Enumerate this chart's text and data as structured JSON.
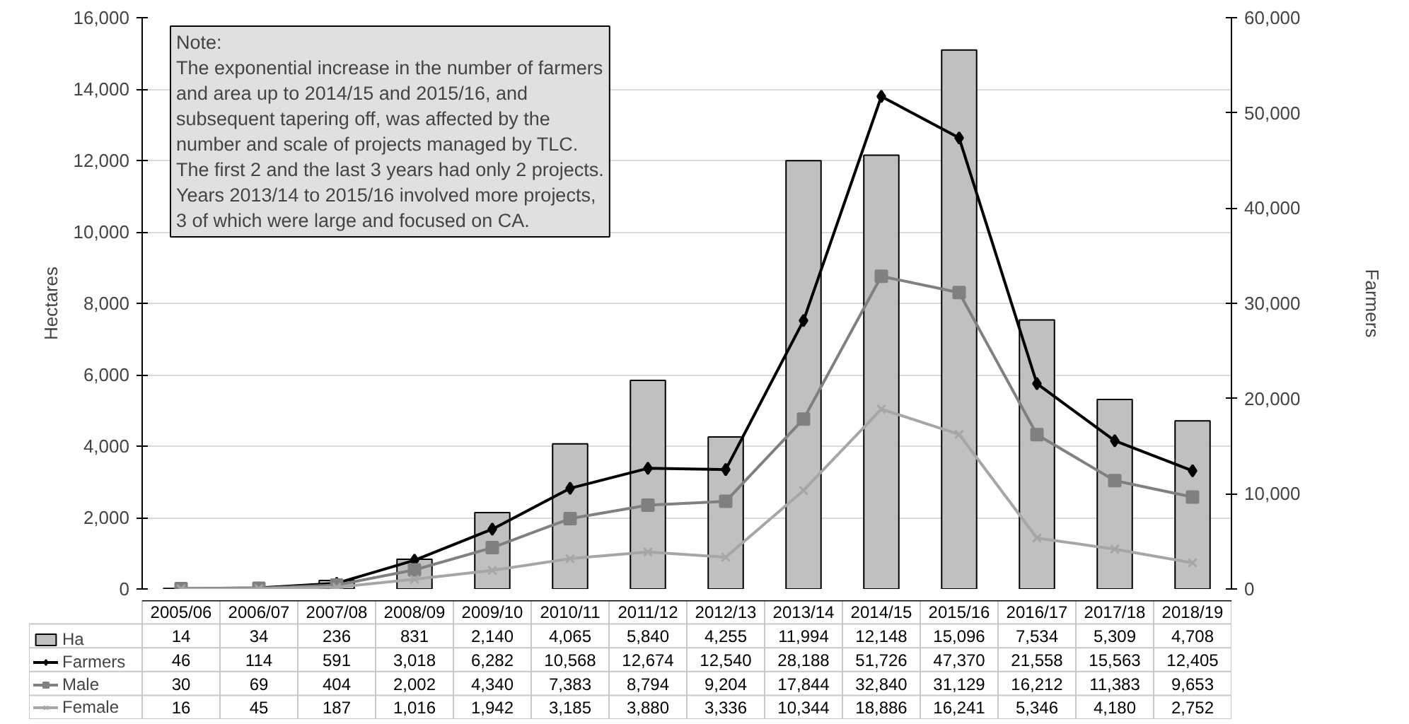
{
  "chart_data": {
    "type": "bar",
    "categories": [
      "2005/06",
      "2006/07",
      "2007/08",
      "2008/09",
      "2009/10",
      "2010/11",
      "2011/12",
      "2012/13",
      "2013/14",
      "2014/15",
      "2015/16",
      "2016/17",
      "2017/18",
      "2018/19"
    ],
    "ylabel": "Hectares",
    "y2label": "Farmers",
    "ylim": [
      0,
      16000
    ],
    "yticks": [
      {
        "value": 0,
        "label": "0"
      },
      {
        "value": 2000,
        "label": "2,000"
      },
      {
        "value": 4000,
        "label": "4,000"
      },
      {
        "value": 6000,
        "label": "6,000"
      },
      {
        "value": 8000,
        "label": "8,000"
      },
      {
        "value": 10000,
        "label": "10,000"
      },
      {
        "value": 12000,
        "label": "12,000"
      },
      {
        "value": 14000,
        "label": "14,000"
      },
      {
        "value": 16000,
        "label": "16,000"
      }
    ],
    "y2lim": [
      0,
      60000
    ],
    "y2ticks": [
      {
        "value": 0,
        "label": "0"
      },
      {
        "value": 10000,
        "label": "10,000"
      },
      {
        "value": 20000,
        "label": "20,000"
      },
      {
        "value": 30000,
        "label": "30,000"
      },
      {
        "value": 40000,
        "label": "40,000"
      },
      {
        "value": 50000,
        "label": "50,000"
      },
      {
        "value": 60000,
        "label": "60,000"
      }
    ],
    "grid": "y",
    "legend": "bottom",
    "annotations": [
      "Note:\nThe exponential increase in the number of farmers\nand area up to 2014/15 and 2015/16, and\nsubsequent tapering off, was affected by the\nnumber and scale of projects managed by TLC.\nThe first 2 and the last 3 years had only 2 projects.\nYears 2013/14 to 2015/16 involved more projects,\n3 of which were large and focused on CA."
    ],
    "series": [
      {
        "name": "Ha",
        "color": "#c0c0c0",
        "values": [
          14,
          34,
          236,
          831,
          2140,
          4065,
          5840,
          4255,
          11994,
          12148,
          15096,
          7534,
          5309,
          4708
        ],
        "value_labels": [
          "14",
          "34",
          "236",
          "831",
          "2,140",
          "4,065",
          "5,840",
          "4,255",
          "11,994",
          "12,148",
          "15,096",
          "7,534",
          "5,309",
          "4,708"
        ]
      },
      {
        "name": "Farmers",
        "type": "line",
        "axis": "y2",
        "marker": "diamond",
        "color": "#000000",
        "values": [
          46,
          114,
          591,
          3018,
          6282,
          10568,
          12674,
          12540,
          28188,
          51726,
          47370,
          21558,
          15563,
          12405
        ],
        "value_labels": [
          "46",
          "114",
          "591",
          "3,018",
          "6,282",
          "10,568",
          "12,674",
          "12,540",
          "28,188",
          "51,726",
          "47,370",
          "21,558",
          "15,563",
          "12,405"
        ]
      },
      {
        "name": "Male",
        "type": "line",
        "axis": "y2",
        "marker": "square",
        "color": "#808080",
        "values": [
          30,
          69,
          404,
          2002,
          4340,
          7383,
          8794,
          9204,
          17844,
          32840,
          31129,
          16212,
          11383,
          9653
        ],
        "value_labels": [
          "30",
          "69",
          "404",
          "2,002",
          "4,340",
          "7,383",
          "8,794",
          "9,204",
          "17,844",
          "32,840",
          "31,129",
          "16,212",
          "11,383",
          "9,653"
        ]
      },
      {
        "name": "Female",
        "type": "line",
        "axis": "y2",
        "marker": "cross",
        "color": "#a6a6a6",
        "values": [
          16,
          45,
          187,
          1016,
          1942,
          3185,
          3880,
          3336,
          10344,
          18886,
          16241,
          5346,
          4180,
          2752
        ],
        "value_labels": [
          "16",
          "45",
          "187",
          "1,016",
          "1,942",
          "3,185",
          "3,880",
          "3,336",
          "10,344",
          "18,886",
          "16,241",
          "5,346",
          "4,180",
          "2,752"
        ]
      }
    ]
  }
}
